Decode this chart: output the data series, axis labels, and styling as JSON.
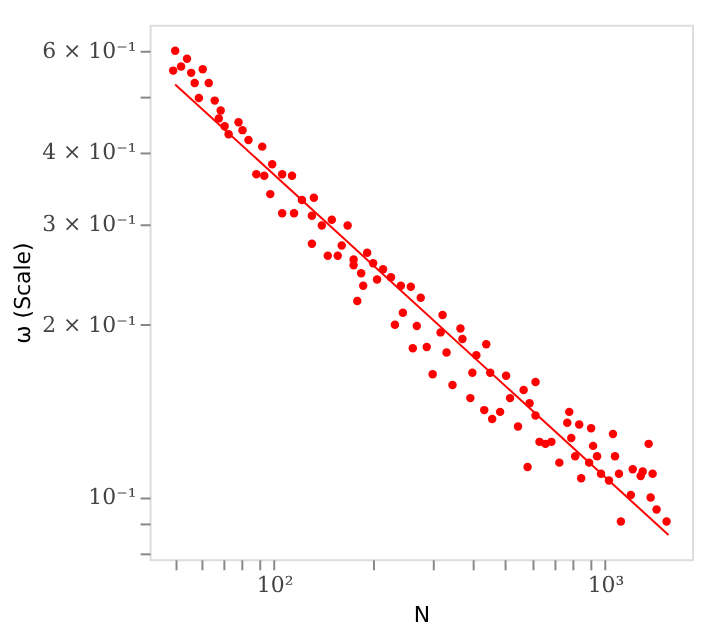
{
  "chart_data": {
    "type": "scatter",
    "xlabel": "N",
    "ylabel": "ω (Scale)",
    "log": "xy",
    "grid": false,
    "marker": "circle",
    "xlim": [
      42,
      1833
    ],
    "ylim": [
      0.078,
      0.667
    ],
    "xticks": [
      {
        "value": 50,
        "label": null
      },
      {
        "value": 60,
        "label": null
      },
      {
        "value": 70,
        "label": null
      },
      {
        "value": 80,
        "label": null
      },
      {
        "value": 90,
        "label": null
      },
      {
        "value": 100,
        "label": "10²"
      },
      {
        "value": 200,
        "label": null
      },
      {
        "value": 300,
        "label": null
      },
      {
        "value": 400,
        "label": null
      },
      {
        "value": 500,
        "label": null
      },
      {
        "value": 600,
        "label": null
      },
      {
        "value": 700,
        "label": null
      },
      {
        "value": 800,
        "label": null
      },
      {
        "value": 900,
        "label": null
      },
      {
        "value": 1000,
        "label": "10³"
      }
    ],
    "yticks": [
      {
        "value": 0.08,
        "label": null
      },
      {
        "value": 0.09,
        "label": null
      },
      {
        "value": 0.1,
        "label": "10⁻¹"
      },
      {
        "value": 0.2,
        "label": "2 × 10⁻¹"
      },
      {
        "value": 0.3,
        "label": "3 × 10⁻¹"
      },
      {
        "value": 0.4,
        "label": "4 × 10⁻¹"
      },
      {
        "value": 0.5,
        "label": null
      },
      {
        "value": 0.6,
        "label": "6 × 10⁻¹"
      }
    ],
    "series": [
      {
        "type": "scatter",
        "color": "#ff0000",
        "x": [
          50.2,
          49.5,
          54.5,
          52.3,
          56.1,
          60.8,
          57.5,
          63.4,
          59.2,
          66.1,
          68.9,
          68.0,
          70.8,
          78.0,
          72.8,
          80.2,
          83.6,
          92.0,
          88.3,
          93.3,
          98.6,
          105.7,
          113.2,
          97.3,
          105.7,
          114.8,
          121.3,
          131.8,
          130.0,
          139.3,
          149.3,
          130.0,
          145.2,
          160.0,
          173.8,
          155.6,
          178.3,
          166.7,
          191.0,
          173.8,
          199.1,
          213.3,
          183.2,
          204.6,
          225.4,
          185.8,
          241.5,
          258.8,
          277.3,
          244.9,
          322.8,
          231.7,
          269.8,
          262.4,
          289.1,
          301.3,
          318.4,
          331.9,
          345.9,
          365.6,
          370.7,
          391.7,
          408.3,
          437.5,
          397.2,
          449.8,
          431.5,
          456.0,
          481.9,
          502.3,
          516.4,
          545.8,
          567.5,
          591.6,
          616.6,
          616.6,
          583.4,
          633.9,
          660.7,
          688.7,
          727.8,
          769.1,
          779.8,
          790.7,
          835.6,
          812.8,
          847.2,
          895.4,
          920.4,
          907.8,
          946.2,
          972.6,
          1028,
          1072,
          1057,
          1102,
          1117,
          1197,
          1213,
          1282,
          1300,
          1355,
          1393,
          1374,
          1432,
          1535
        ],
        "values": [
          0.601,
          0.555,
          0.582,
          0.564,
          0.55,
          0.558,
          0.528,
          0.528,
          0.497,
          0.492,
          0.473,
          0.458,
          0.444,
          0.451,
          0.43,
          0.437,
          0.42,
          0.409,
          0.366,
          0.364,
          0.381,
          0.366,
          0.364,
          0.338,
          0.313,
          0.313,
          0.33,
          0.333,
          0.31,
          0.298,
          0.305,
          0.277,
          0.264,
          0.275,
          0.26,
          0.264,
          0.22,
          0.298,
          0.267,
          0.254,
          0.256,
          0.25,
          0.246,
          0.24,
          0.242,
          0.234,
          0.234,
          0.233,
          0.223,
          0.21,
          0.208,
          0.2,
          0.199,
          0.182,
          0.183,
          0.164,
          0.194,
          0.179,
          0.157,
          0.197,
          0.189,
          0.149,
          0.177,
          0.185,
          0.165,
          0.165,
          0.142,
          0.137,
          0.141,
          0.163,
          0.149,
          0.133,
          0.154,
          0.146,
          0.159,
          0.139,
          0.113,
          0.125,
          0.124,
          0.125,
          0.115,
          0.135,
          0.141,
          0.127,
          0.134,
          0.118,
          0.108,
          0.115,
          0.123,
          0.132,
          0.118,
          0.11,
          0.107,
          0.118,
          0.129,
          0.11,
          0.0908,
          0.101,
          0.112,
          0.109,
          0.111,
          0.124,
          0.11,
          0.1,
          0.0953,
          0.0908
        ]
      },
      {
        "type": "line",
        "marker": "none",
        "line_style": "solid",
        "color": "#ff0000",
        "x": [
          50.2,
          1556
        ],
        "values": [
          0.525,
          0.086
        ]
      }
    ]
  }
}
